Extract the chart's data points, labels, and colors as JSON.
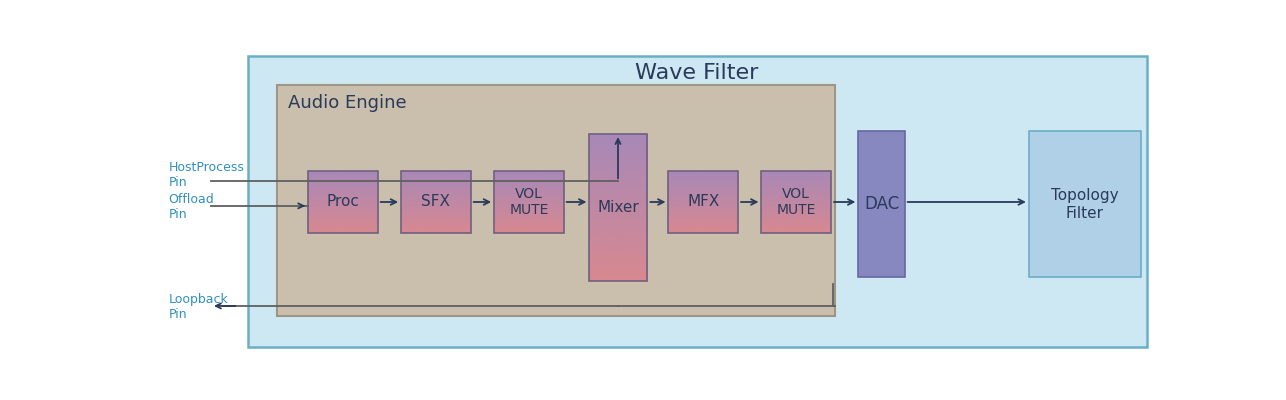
{
  "wave_filter_bg": "#cde8f2",
  "wave_filter_border": "#6aaec8",
  "audio_engine_bg": "#c9bfac",
  "audio_engine_border": "#a09585",
  "topology_filter_bg": "#b8d8e8",
  "topology_filter_border": "#6aaec8",
  "wave_filter_label": "Wave Filter",
  "audio_engine_label": "Audio Engine",
  "color_top": "#a888b8",
  "color_bottom": "#d88890",
  "dac_color": "#8888c0",
  "dac_border": "#6666a0",
  "topo_color": "#b0d0e8",
  "topo_border": "#6aaec8",
  "labels": {
    "proc": "Proc",
    "sfx": "SFX",
    "vol_mute1": "VOL\nMUTE",
    "mixer": "Mixer",
    "mfx": "MFX",
    "vol_mute2": "VOL\nMUTE",
    "dac": "DAC",
    "topology": "Topology\nFilter"
  },
  "pin_labels": {
    "host": "HostProcess\nPin",
    "offload": "Offload\nPin",
    "loopback": "Loopback\nPin"
  },
  "pin_color": "#3090c0",
  "text_color": "#2a3a5a",
  "arrow_color": "#2a3a5a",
  "line_color": "#606060"
}
